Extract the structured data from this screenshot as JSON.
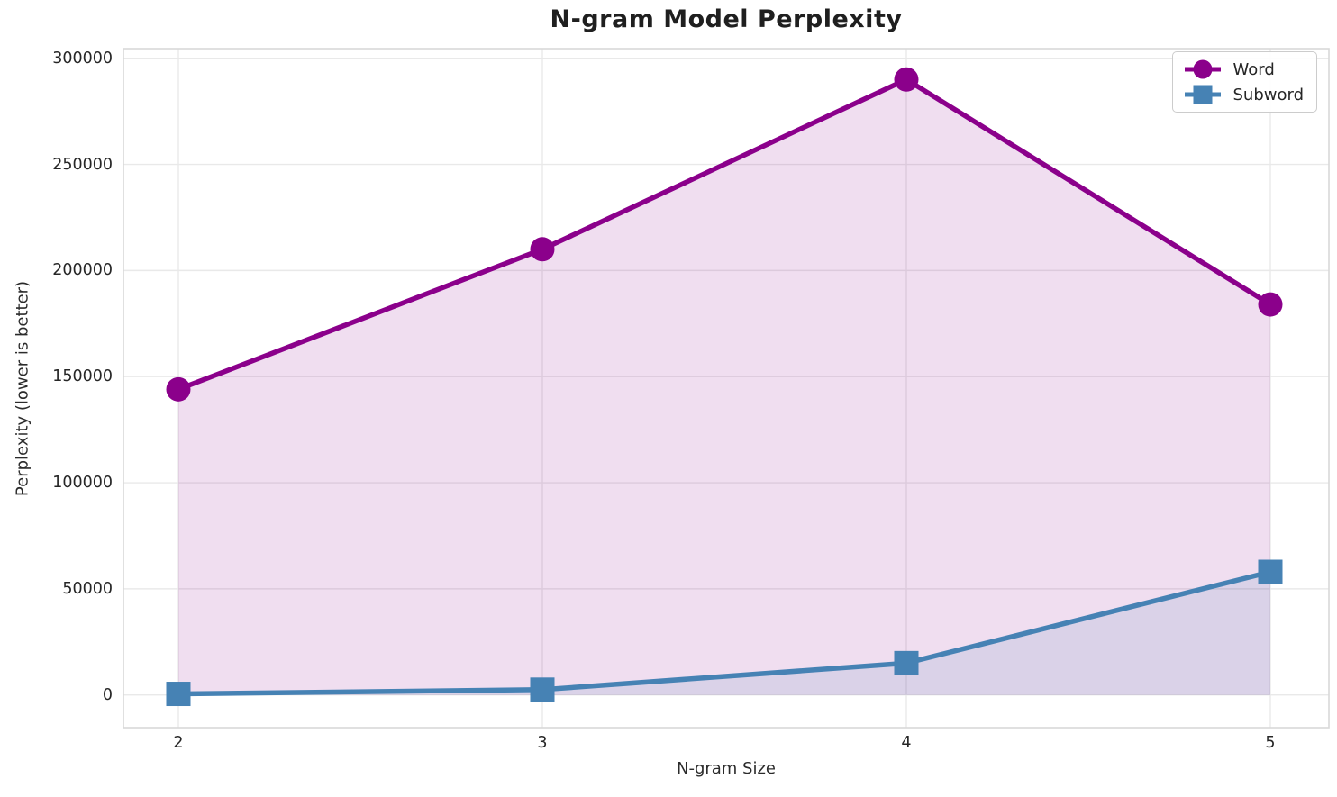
{
  "chart_data": {
    "type": "line",
    "title": "N-gram Model Perplexity",
    "xlabel": "N-gram Size",
    "ylabel": "Perplexity (lower is better)",
    "x": [
      2,
      3,
      4,
      5
    ],
    "x_tick_labels": [
      "2",
      "3",
      "4",
      "5"
    ],
    "y_ticks": [
      0,
      50000,
      100000,
      150000,
      200000,
      250000,
      300000
    ],
    "y_tick_labels": [
      "0",
      "50000",
      "100000",
      "150000",
      "200000",
      "250000",
      "300000"
    ],
    "ylim": [
      0,
      300000
    ],
    "grid": true,
    "legend_position": "upper right",
    "series": [
      {
        "name": "Word",
        "marker": "circle",
        "color": "#8B008B",
        "fill_under": true,
        "values": [
          144000,
          210000,
          290000,
          184000
        ]
      },
      {
        "name": "Subword",
        "marker": "square",
        "color": "#4682B4",
        "fill_under": true,
        "values": [
          500,
          2500,
          15000,
          58000
        ]
      }
    ],
    "colors": {
      "grid": "#e9e9e9",
      "frame": "#d9d9d9",
      "title_text": "#1f1f1f",
      "tick_text": "#262626"
    }
  }
}
